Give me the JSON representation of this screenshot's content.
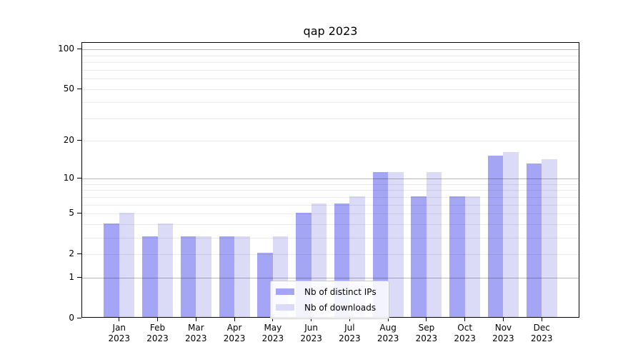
{
  "chart_data": {
    "type": "bar",
    "title": "qap 2023",
    "categories": [
      "Jan",
      "Feb",
      "Mar",
      "Apr",
      "May",
      "Jun",
      "Jul",
      "Aug",
      "Sep",
      "Oct",
      "Nov",
      "Dec"
    ],
    "x_year_label": "2023",
    "series": [
      {
        "name": "Nb of distinct IPs",
        "color": "#a5a5f5",
        "values": [
          4,
          3,
          3,
          3,
          2,
          5,
          6,
          11,
          7,
          7,
          15,
          13
        ]
      },
      {
        "name": "Nb of downloads",
        "color": "#dbdbf8",
        "values": [
          5,
          4,
          3,
          3,
          3,
          6,
          7,
          11,
          11,
          7,
          16,
          14
        ]
      }
    ],
    "yscale": "log1p",
    "ylim": [
      0,
      113
    ],
    "yticks": [
      100,
      50,
      20,
      10,
      5,
      2,
      1,
      0
    ],
    "grid": {
      "major_lines": [
        1,
        10,
        100
      ],
      "minor_lines": [
        2,
        3,
        4,
        5,
        6,
        7,
        8,
        9,
        20,
        30,
        40,
        50,
        60,
        70,
        80,
        90
      ],
      "major_color": "rgba(0,0,0,0.27)",
      "minor_color": "rgba(0,0,0,0.08)"
    },
    "legend": {
      "position": "lower center-left"
    },
    "colors": {
      "axis": "#000000",
      "background": "#ffffff"
    }
  }
}
